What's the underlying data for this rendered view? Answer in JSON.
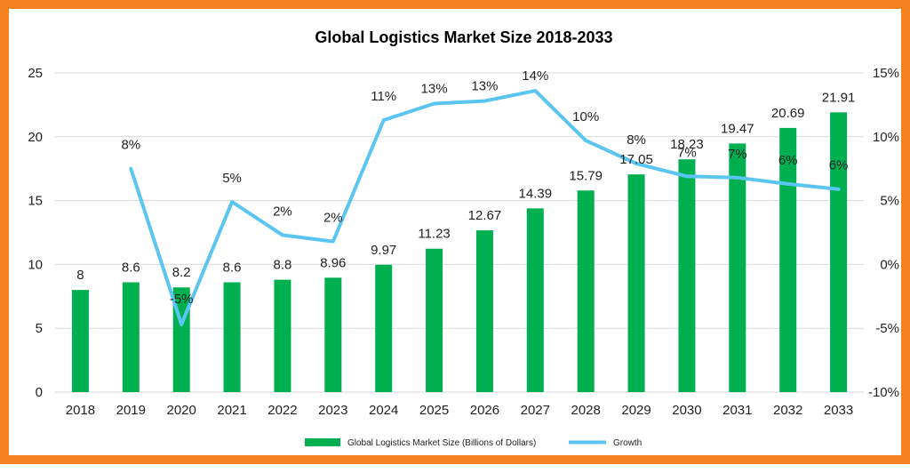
{
  "chart_data": {
    "type": "bar",
    "title": "Global Logistics Market Size 2018-2033",
    "categories": [
      "2018",
      "2019",
      "2020",
      "2021",
      "2022",
      "2023",
      "2024",
      "2025",
      "2026",
      "2027",
      "2028",
      "2029",
      "2030",
      "2031",
      "2032",
      "2033"
    ],
    "series": [
      {
        "name": "Global Logistics Market Size (Billions of Dollars)",
        "type": "bar",
        "axis": "left",
        "color": "#00B050",
        "values": [
          8,
          8.6,
          8.2,
          8.6,
          8.8,
          8.96,
          9.97,
          11.23,
          12.67,
          14.39,
          15.79,
          17.05,
          18.23,
          19.47,
          20.69,
          21.91
        ],
        "labels": [
          "8",
          "8.6",
          "8.2",
          "8.6",
          "8.8",
          "8.96",
          "9.97",
          "11.23",
          "12.67",
          "14.39",
          "15.79",
          "17.05",
          "18.23",
          "19.47",
          "20.69",
          "21.91"
        ]
      },
      {
        "name": "Growth",
        "type": "line",
        "axis": "right",
        "color": "#5BC5F2",
        "values": [
          null,
          7.5,
          -4.7,
          4.9,
          2.3,
          1.8,
          11.3,
          12.6,
          12.8,
          13.6,
          9.7,
          7.9,
          6.9,
          6.8,
          6.3,
          5.9
        ],
        "labels": [
          null,
          "8%",
          "-5%",
          "5%",
          "2%",
          "2%",
          "11%",
          "13%",
          "13%",
          "14%",
          "10%",
          "8%",
          "7%",
          "7%",
          "6%",
          "6%"
        ]
      }
    ],
    "y_left": {
      "min": 0,
      "max": 25,
      "ticks": [
        "0",
        "5",
        "10",
        "15",
        "20",
        "25"
      ]
    },
    "y_right": {
      "min": -10,
      "max": 15,
      "ticks": [
        "-10%",
        "-5%",
        "0%",
        "5%",
        "10%",
        "15%"
      ]
    },
    "grid": true,
    "legend_position": "bottom"
  }
}
